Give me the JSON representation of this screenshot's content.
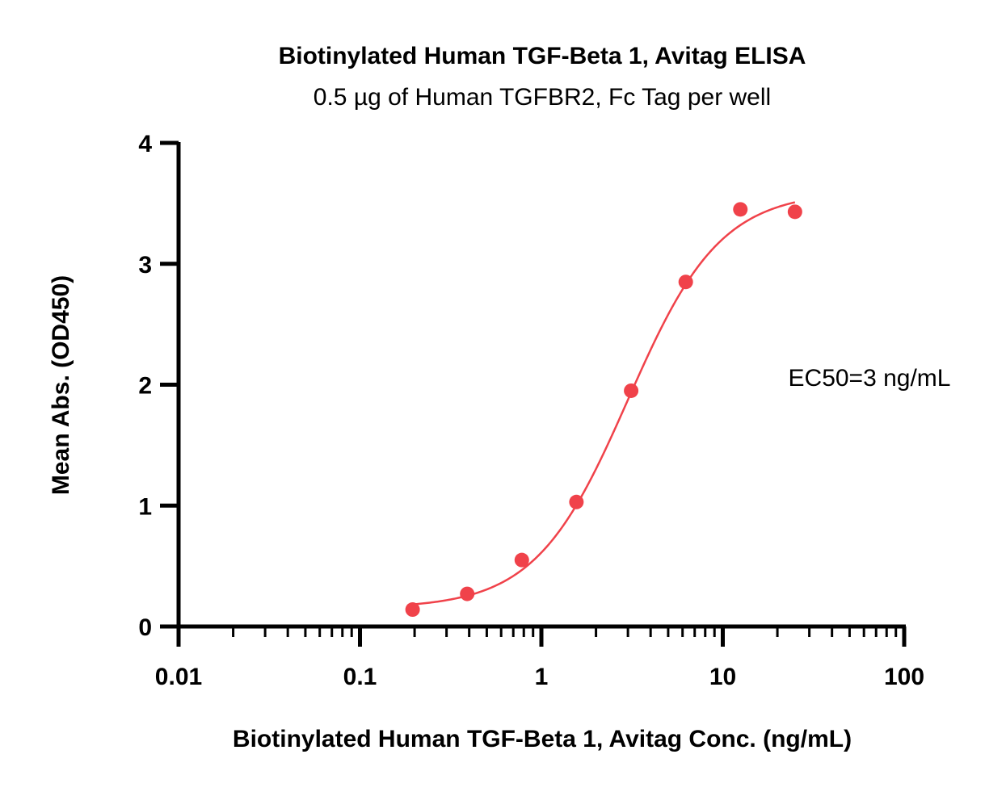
{
  "chart_data": {
    "type": "scatter",
    "title": "Biotinylated Human TGF-Beta 1, Avitag ELISA",
    "subtitle": "0.5 µg of Human TGFBR2, Fc Tag per well",
    "xlabel": "Biotinylated Human TGF-Beta 1, Avitag Conc. (ng/mL)",
    "ylabel": "Mean Abs. (OD450)",
    "x_scale": "log",
    "xlim": [
      0.01,
      100
    ],
    "ylim": [
      0,
      4
    ],
    "x_ticks": [
      "0.01",
      "0.1",
      "1",
      "10",
      "100"
    ],
    "y_ticks": [
      "0",
      "1",
      "2",
      "3",
      "4"
    ],
    "grid": false,
    "color": "#f0424a",
    "series": [
      {
        "x": [
          0.195,
          0.39,
          0.78,
          1.56,
          3.125,
          6.25,
          12.5,
          25
        ],
        "y": [
          0.14,
          0.27,
          0.55,
          1.03,
          1.95,
          2.85,
          3.45,
          3.43
        ]
      }
    ],
    "fit_curve": {
      "model": "4PL",
      "bottom": 0.15,
      "top": 3.6,
      "ec50": 3,
      "hill": 1.7,
      "x_range": [
        0.195,
        25
      ]
    },
    "annotation": "EC50=3 ng/mL"
  }
}
